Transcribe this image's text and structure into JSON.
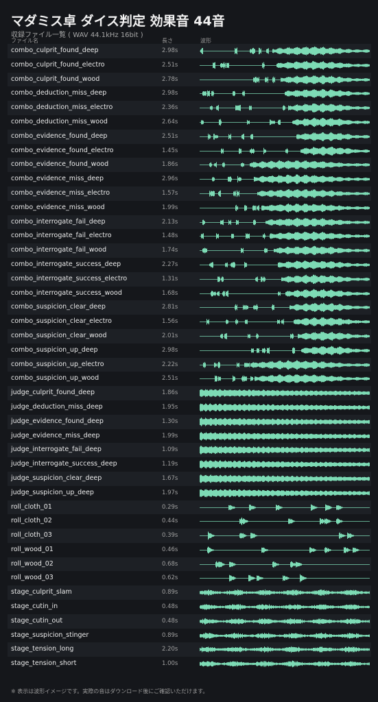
{
  "header": {
    "title": "マダミス卓 ダイス判定 効果音 44音",
    "subtitle": "収録ファイル一覧 ( WAV 44.1kHz 16bit )"
  },
  "table": {
    "columns": [
      "ファイル名",
      "長さ",
      "波形"
    ],
    "rows": [
      [
        "combo_culprit_found_deep",
        "2.98s"
      ],
      [
        "combo_culprit_found_electro",
        "2.51s"
      ],
      [
        "combo_culprit_found_wood",
        "2.78s"
      ],
      [
        "combo_deduction_miss_deep",
        "2.98s"
      ],
      [
        "combo_deduction_miss_electro",
        "2.36s"
      ],
      [
        "combo_deduction_miss_wood",
        "2.64s"
      ],
      [
        "combo_evidence_found_deep",
        "2.51s"
      ],
      [
        "combo_evidence_found_electro",
        "1.45s"
      ],
      [
        "combo_evidence_found_wood",
        "1.86s"
      ],
      [
        "combo_evidence_miss_deep",
        "2.96s"
      ],
      [
        "combo_evidence_miss_electro",
        "1.57s"
      ],
      [
        "combo_evidence_miss_wood",
        "1.99s"
      ],
      [
        "combo_interrogate_fail_deep",
        "2.13s"
      ],
      [
        "combo_interrogate_fail_electro",
        "1.48s"
      ],
      [
        "combo_interrogate_fail_wood",
        "1.74s"
      ],
      [
        "combo_interrogate_success_deep",
        "2.27s"
      ],
      [
        "combo_interrogate_success_electro",
        "1.31s"
      ],
      [
        "combo_interrogate_success_wood",
        "1.68s"
      ],
      [
        "combo_suspicion_clear_deep",
        "2.81s"
      ],
      [
        "combo_suspicion_clear_electro",
        "1.56s"
      ],
      [
        "combo_suspicion_clear_wood",
        "2.01s"
      ],
      [
        "combo_suspicion_up_deep",
        "2.98s"
      ],
      [
        "combo_suspicion_up_electro",
        "2.22s"
      ],
      [
        "combo_suspicion_up_wood",
        "2.51s"
      ],
      [
        "judge_culprit_found_deep",
        "1.86s"
      ],
      [
        "judge_deduction_miss_deep",
        "1.95s"
      ],
      [
        "judge_evidence_found_deep",
        "1.30s"
      ],
      [
        "judge_evidence_miss_deep",
        "1.99s"
      ],
      [
        "judge_interrogate_fail_deep",
        "1.09s"
      ],
      [
        "judge_interrogate_success_deep",
        "1.19s"
      ],
      [
        "judge_suspicion_clear_deep",
        "1.67s"
      ],
      [
        "judge_suspicion_up_deep",
        "1.97s"
      ],
      [
        "roll_cloth_01",
        "0.29s"
      ],
      [
        "roll_cloth_02",
        "0.44s"
      ],
      [
        "roll_cloth_03",
        "0.39s"
      ],
      [
        "roll_wood_01",
        "0.46s"
      ],
      [
        "roll_wood_02",
        "0.68s"
      ],
      [
        "roll_wood_03",
        "0.62s"
      ],
      [
        "stage_culprit_slam",
        "0.89s"
      ],
      [
        "stage_cutin_in",
        "0.48s"
      ],
      [
        "stage_cutin_out",
        "0.48s"
      ],
      [
        "stage_suspicion_stinger",
        "0.89s"
      ],
      [
        "stage_tension_long",
        "2.20s"
      ],
      [
        "stage_tension_short",
        "1.00s"
      ]
    ]
  },
  "footer": "※ 表示は波形イメージです。実際の音はダウンロード後にご確認いただけます。"
}
